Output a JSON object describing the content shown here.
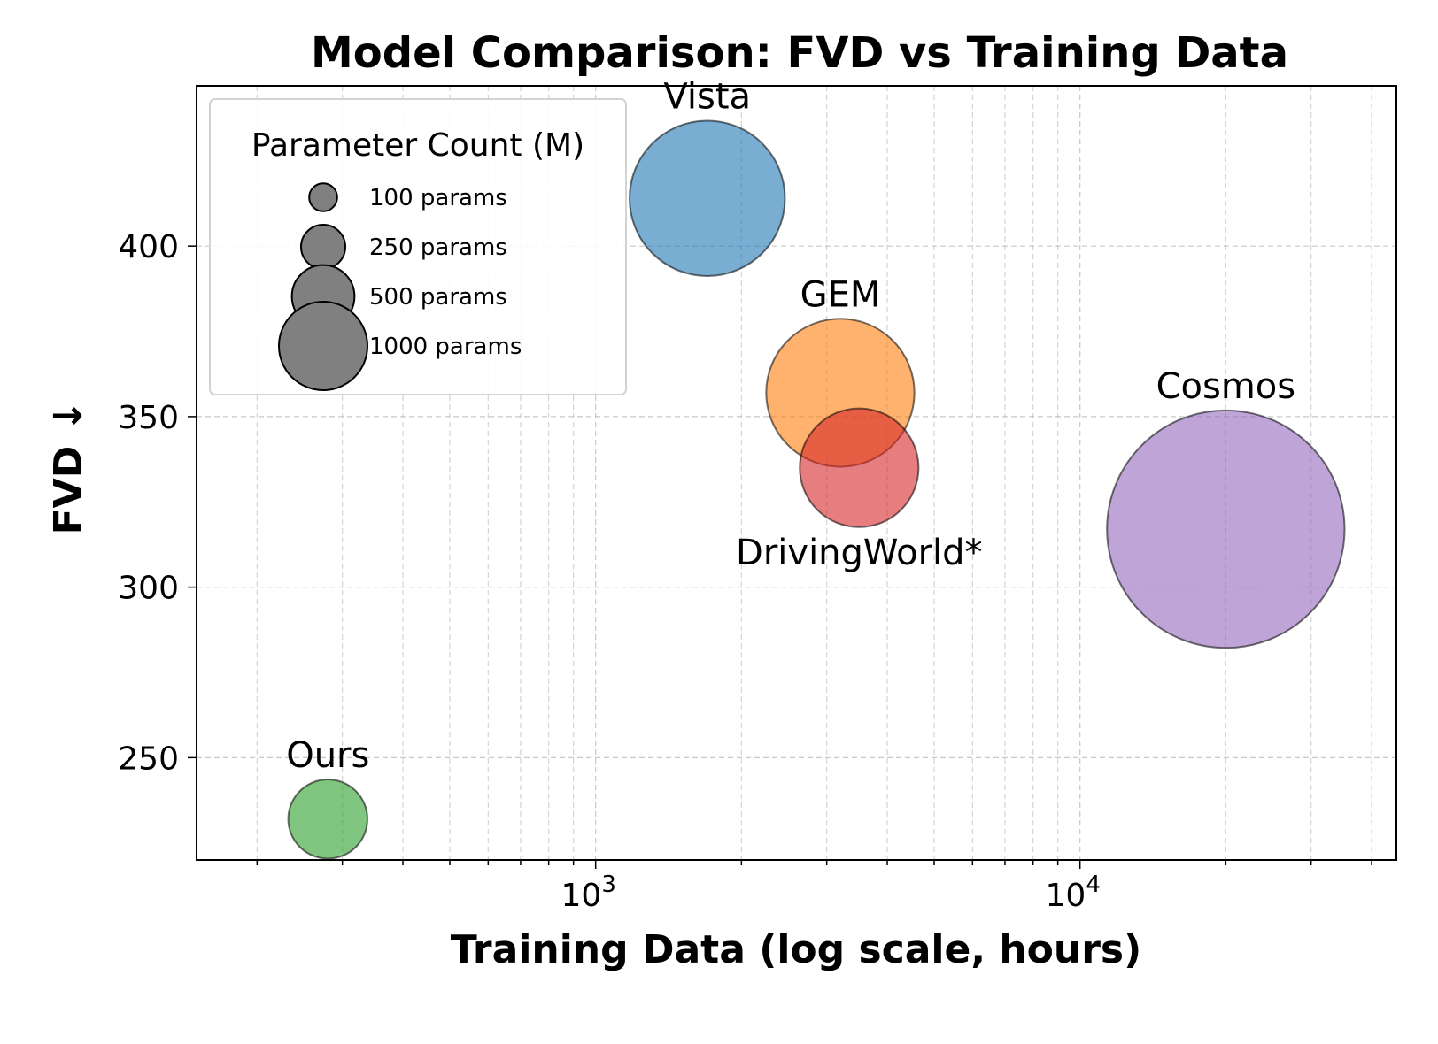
{
  "chart_data": {
    "type": "scatter",
    "title": "Model Comparison: FVD vs Training Data",
    "xlabel": "Training Data (log scale, hours)",
    "ylabel": "FVD ↓",
    "xscale": "log",
    "xlim": [
      150,
      45000
    ],
    "ylim": [
      220,
      447
    ],
    "yticks": [
      250,
      300,
      350,
      400
    ],
    "xticks": [
      {
        "value": 1000,
        "base": "10",
        "exp": "3"
      },
      {
        "value": 10000,
        "base": "10",
        "exp": "4"
      }
    ],
    "grid": true,
    "points": [
      {
        "name": "Vista",
        "x": 1700,
        "y": 414,
        "params": 770,
        "color": "#1f77b4",
        "label_pos": "above"
      },
      {
        "name": "GEM",
        "x": 3200,
        "y": 357,
        "params": 700,
        "color": "#ff7f0e",
        "label_pos": "above"
      },
      {
        "name": "DrivingWorld*",
        "x": 3500,
        "y": 335,
        "params": 450,
        "color": "#d62728",
        "label_pos": "below"
      },
      {
        "name": "Cosmos",
        "x": 20000,
        "y": 317,
        "params": 1800,
        "color": "#9467bd",
        "label_pos": "above"
      },
      {
        "name": "Ours",
        "x": 280,
        "y": 232,
        "params": 200,
        "color": "#2ca02c",
        "label_pos": "above"
      }
    ],
    "legend": {
      "title": "Parameter Count (M)",
      "position": "upper-left",
      "entries": [
        {
          "label": "100 params",
          "params": 100
        },
        {
          "label": "250 params",
          "params": 250
        },
        {
          "label": "500 params",
          "params": 500
        },
        {
          "label": "1000 params",
          "params": 1000
        }
      ]
    }
  }
}
